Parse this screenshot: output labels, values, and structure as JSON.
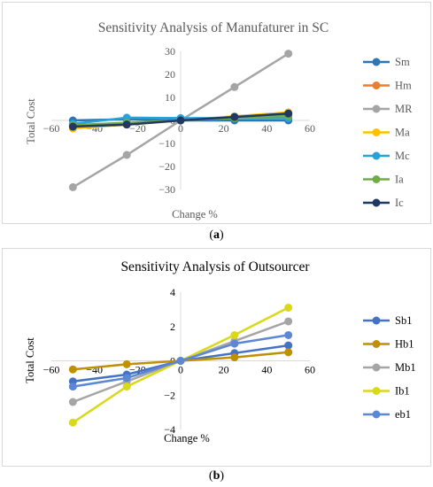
{
  "charts": [
    {
      "caption_letter": "a",
      "chart_data": {
        "type": "line",
        "title": "Sensitivity Analysis of Manufaturer in SC",
        "xlabel": "Change %",
        "ylabel": "Total Cost",
        "xlim": [
          -60,
          60
        ],
        "ylim": [
          -30,
          30
        ],
        "xticks": [
          "−60",
          "−40",
          "−20",
          "0",
          "20",
          "40",
          "60"
        ],
        "yticks": [
          "−30",
          "−20",
          "−10",
          "0",
          "10",
          "20",
          "30"
        ],
        "grid": false,
        "legend_position": "right",
        "x": [
          -50,
          -25,
          0,
          25,
          50
        ],
        "series": [
          {
            "name": "Sm",
            "color": "#2e75b6",
            "values": [
              0,
              0.5,
              0,
              0,
              0
            ]
          },
          {
            "name": "Hm",
            "color": "#ed7d31",
            "values": [
              -2.5,
              -1.2,
              0,
              1.2,
              2.5
            ]
          },
          {
            "name": "MR",
            "color": "#a5a5a5",
            "values": [
              -29,
              -15,
              0,
              14.5,
              29
            ]
          },
          {
            "name": "Ma",
            "color": "#ffc000",
            "values": [
              -3.5,
              -1.8,
              0,
              1.8,
              3.5
            ]
          },
          {
            "name": "Mc",
            "color": "#27a3d8",
            "values": [
              -1.5,
              1.2,
              1,
              1,
              1
            ]
          },
          {
            "name": "Ia",
            "color": "#70ad47",
            "values": [
              -2,
              -1,
              0,
              1,
              2
            ]
          },
          {
            "name": "Ic",
            "color": "#1f3864",
            "values": [
              -2.7,
              -1.8,
              0,
              1.5,
              3
            ]
          }
        ]
      }
    },
    {
      "caption_letter": "b",
      "chart_data": {
        "type": "line",
        "title": "Sensitivity Analysis of Outsourcer",
        "xlabel": "Change %",
        "ylabel": "Total Cost",
        "xlim": [
          -60,
          60
        ],
        "ylim": [
          -4,
          4
        ],
        "xticks": [
          "−60",
          "−40",
          "−20",
          "0",
          "20",
          "40",
          "60"
        ],
        "yticks": [
          "−4",
          "−2",
          "0",
          "2",
          "4"
        ],
        "grid": false,
        "legend_position": "right",
        "x": [
          -50,
          -25,
          0,
          25,
          50
        ],
        "series": [
          {
            "name": "Sb1",
            "color": "#4472c4",
            "values": [
              -1.2,
              -0.8,
              0,
              0.45,
              0.9
            ]
          },
          {
            "name": "Hb1",
            "color": "#bf9000",
            "values": [
              -0.5,
              -0.2,
              0,
              0.2,
              0.5
            ]
          },
          {
            "name": "Mb1",
            "color": "#a5a5a5",
            "values": [
              -2.4,
              -1.2,
              0,
              1.15,
              2.3
            ]
          },
          {
            "name": "Ib1",
            "color": "#d9d918",
            "values": [
              -3.6,
              -1.5,
              0,
              1.5,
              3.1
            ]
          },
          {
            "name": "eb1",
            "color": "#5b87d6",
            "values": [
              -1.5,
              -1,
              0,
              1,
              1.5
            ]
          }
        ]
      }
    }
  ],
  "colors": {
    "frame": "#d9d9d9",
    "axis_a": "#d9d9d9",
    "axis_b": "#d9d9d9",
    "text": "#595959"
  }
}
